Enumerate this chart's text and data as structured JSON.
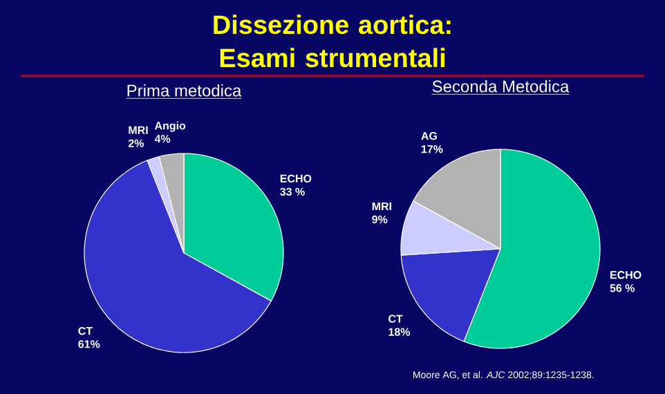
{
  "chart_data": [
    {
      "type": "pie",
      "title": "Dissezione aortica: Esami strumentali",
      "subtitle": "Prima metodica",
      "categories": [
        "ECHO",
        "CT",
        "MRI",
        "Angio"
      ],
      "values": [
        33,
        61,
        2,
        4
      ],
      "value_labels": [
        "33 %",
        "61%",
        "2%",
        "4%"
      ],
      "colors": [
        "#00cc99",
        "#3333cc",
        "#ccccff",
        "#b2b2b2"
      ]
    },
    {
      "type": "pie",
      "subtitle": "Seconda Metodica",
      "categories": [
        "ECHO",
        "CT",
        "MRI",
        "AG"
      ],
      "values": [
        56,
        18,
        9,
        17
      ],
      "value_labels": [
        "56 %",
        "18%",
        "9%",
        "17%"
      ],
      "colors": [
        "#00cc99",
        "#3333cc",
        "#ccccff",
        "#b2b2b2"
      ],
      "annotations": [
        "Moore AG, et al. *AJC* 2002;89:1235-1238."
      ]
    }
  ]
}
